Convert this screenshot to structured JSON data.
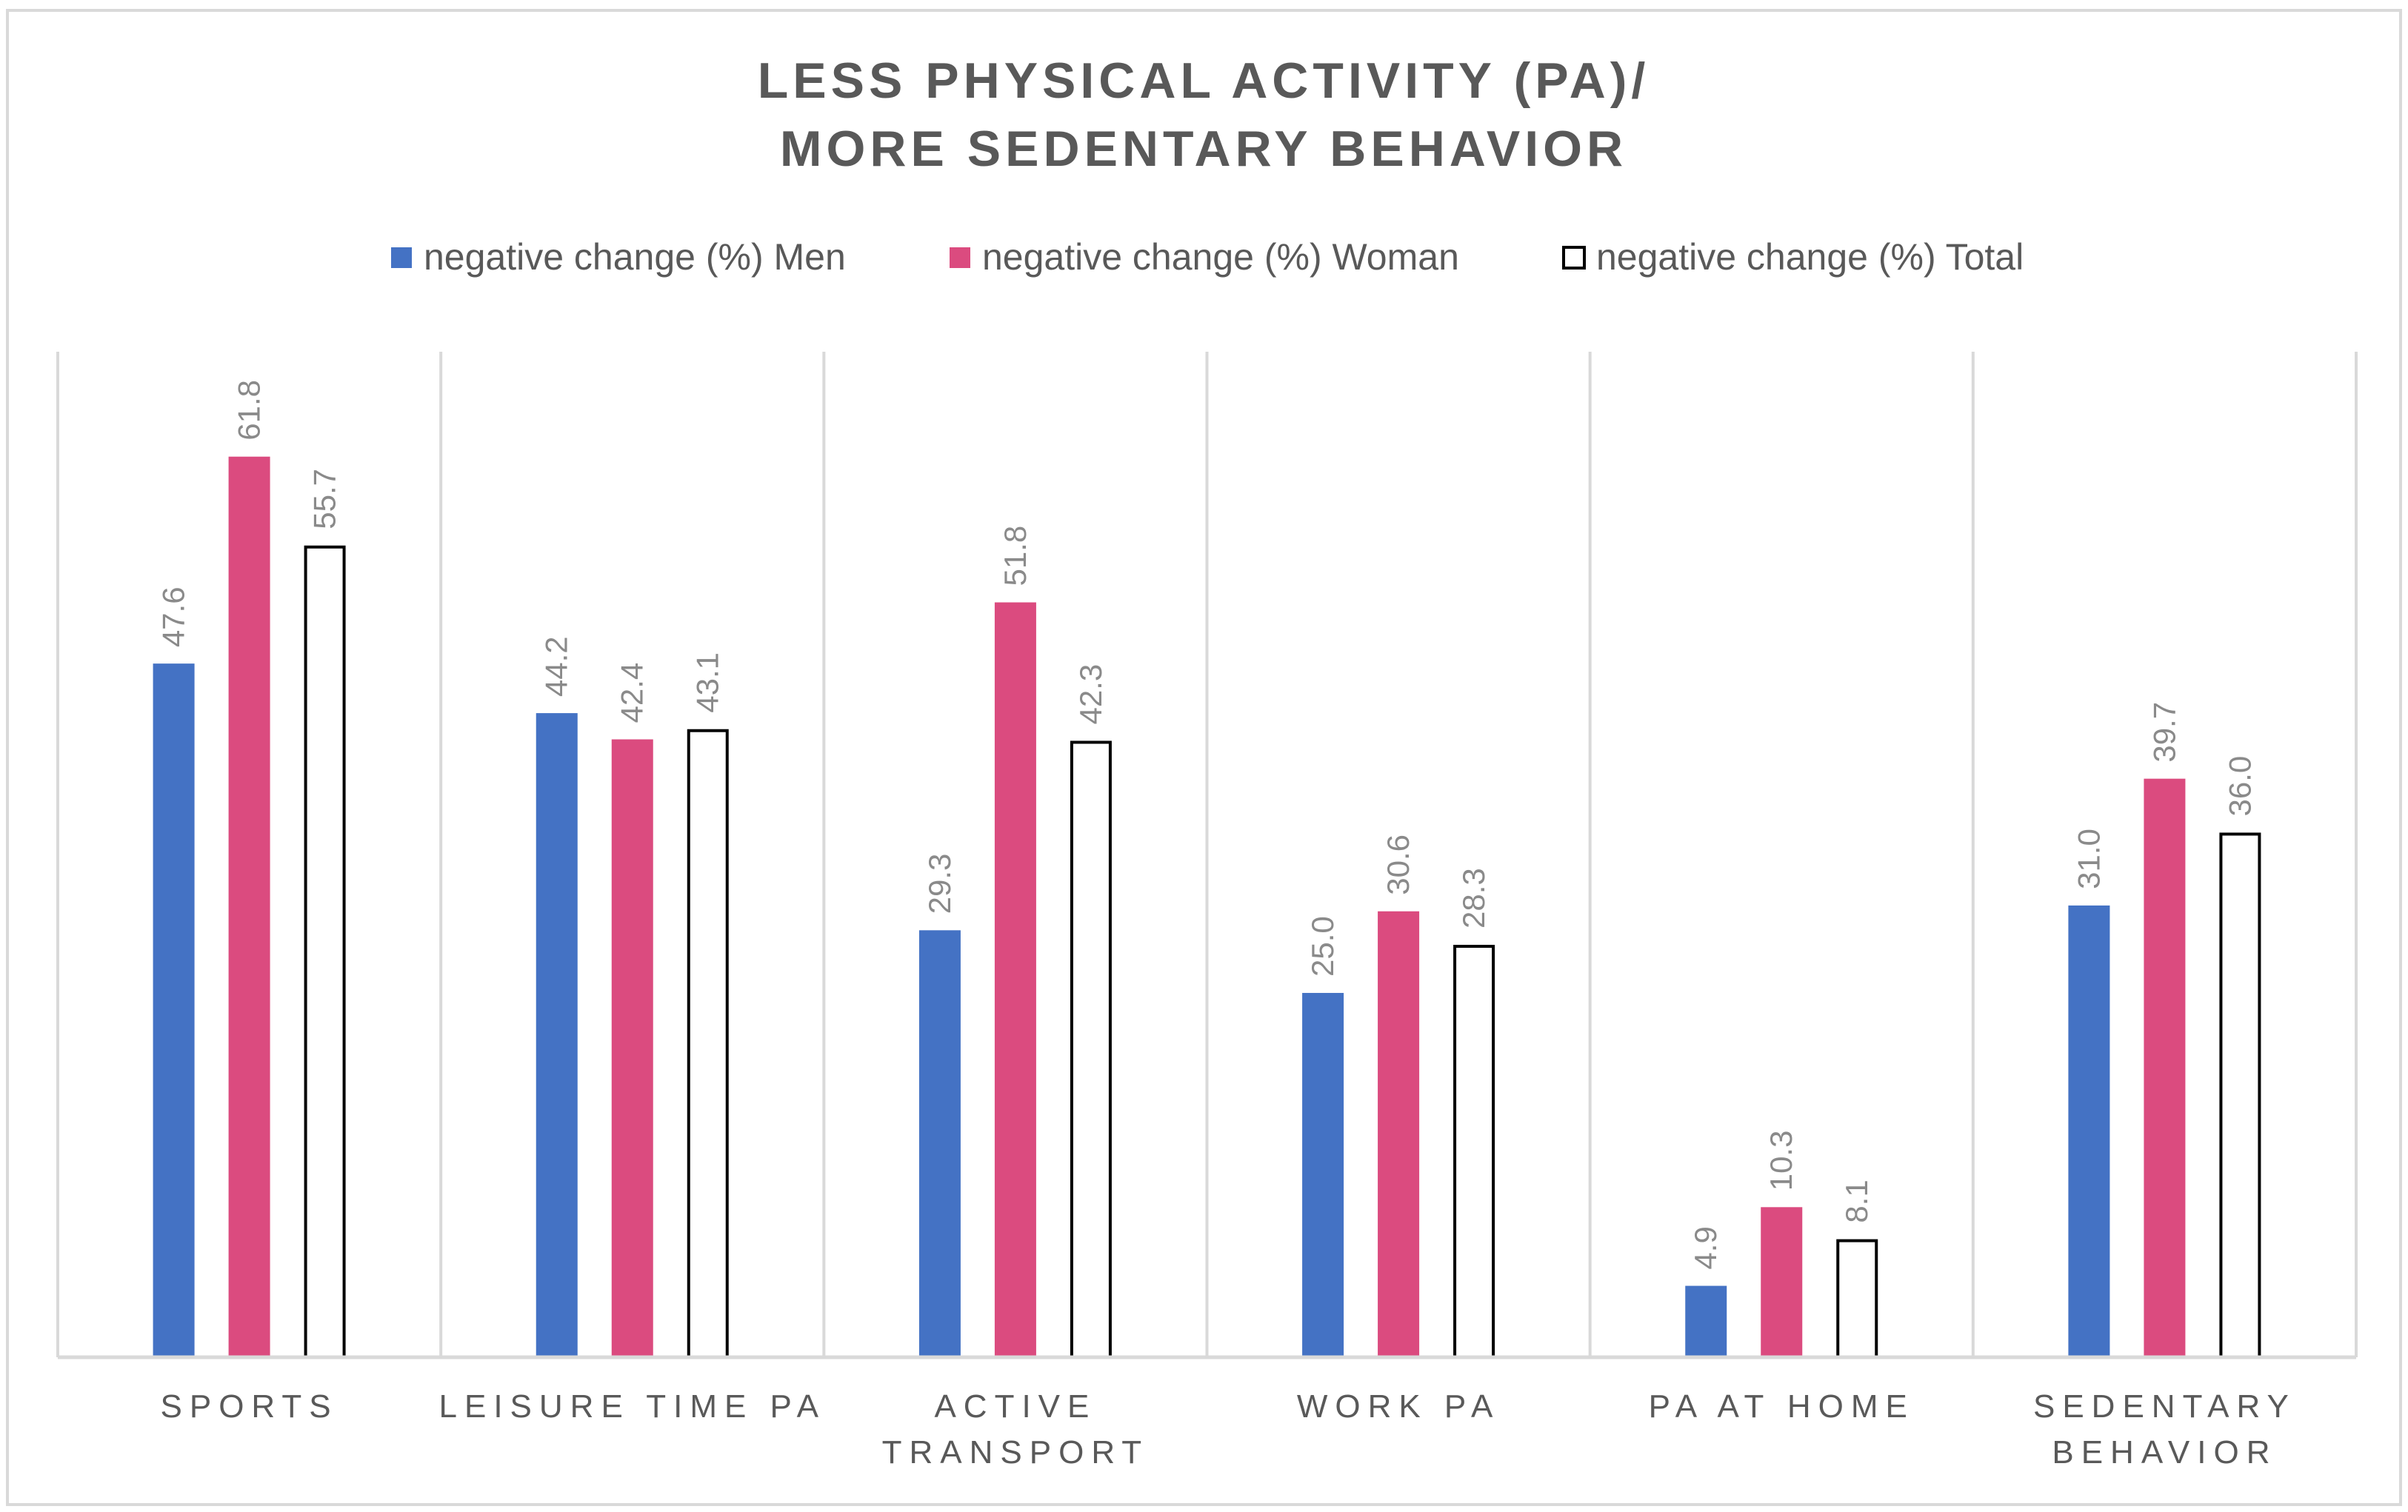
{
  "chart_data": {
    "type": "bar",
    "title": [
      "LESS PHYSICAL ACTIVITY (PA)/",
      "MORE SEDENTARY BEHAVIOR"
    ],
    "categories": [
      [
        "SPORTS"
      ],
      [
        "LEISURE TIME PA"
      ],
      [
        "ACTIVE",
        "TRANSPORT"
      ],
      [
        "WORK PA"
      ],
      [
        "PA AT HOME"
      ],
      [
        "SEDENTARY",
        "BEHAVIOR"
      ]
    ],
    "series": [
      {
        "name": "negative change (%) Men",
        "color": "#4472c4",
        "outline": "none",
        "values": [
          47.6,
          44.2,
          29.3,
          25.0,
          4.9,
          31.0
        ]
      },
      {
        "name": "negative change (%) Woman",
        "color": "#db4b7f",
        "outline": "none",
        "values": [
          61.8,
          42.4,
          51.8,
          30.6,
          10.3,
          39.7
        ]
      },
      {
        "name": "negative change (%) Total",
        "color": "#ffffff",
        "outline": "#000000",
        "values": [
          55.7,
          43.1,
          42.3,
          28.3,
          8.1,
          36.0
        ]
      }
    ],
    "value_labels": [
      [
        "47.6",
        "44.2",
        "29.3",
        "25.0",
        "4.9",
        "31.0"
      ],
      [
        "61.8",
        "42.4",
        "51.8",
        "30.6",
        "10.3",
        "39.7"
      ],
      [
        "55.7",
        "43.1",
        "42.3",
        "28.3",
        "8.1",
        "36.0"
      ]
    ],
    "ylim": [
      0,
      69
    ],
    "xlabel": "",
    "ylabel": "",
    "grid": "vertical category separators",
    "legend_position": "top"
  }
}
